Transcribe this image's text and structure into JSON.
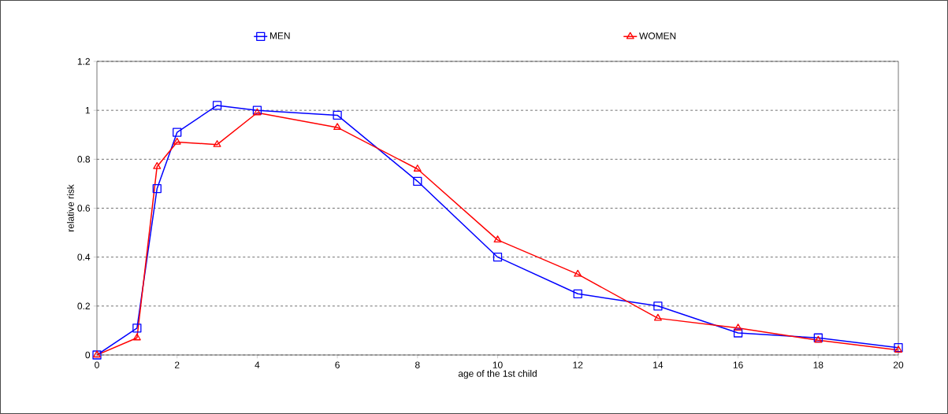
{
  "chart_data": {
    "type": "line",
    "xlabel": "age of the 1st child",
    "ylabel": "relative risk",
    "x": [
      0,
      1,
      1.5,
      2,
      3,
      4,
      6,
      8,
      10,
      12,
      14,
      16,
      18,
      20
    ],
    "series": [
      {
        "name": "MEN",
        "color": "#0000ff",
        "marker": "square",
        "values": [
          0,
          0.11,
          0.68,
          0.91,
          1.02,
          1.0,
          0.98,
          0.71,
          0.4,
          0.25,
          0.2,
          0.09,
          0.07,
          0.03
        ]
      },
      {
        "name": "WOMEN",
        "color": "#ff0000",
        "marker": "triangle",
        "values": [
          0,
          0.07,
          0.77,
          0.87,
          0.86,
          0.99,
          0.93,
          0.76,
          0.47,
          0.33,
          0.15,
          0.11,
          0.06,
          0.02
        ]
      }
    ],
    "xlim": [
      0,
      20
    ],
    "xticks": [
      0,
      2,
      4,
      6,
      8,
      10,
      12,
      14,
      16,
      18,
      20
    ],
    "ylim": [
      0,
      1.2
    ],
    "yticks": [
      0,
      0.2,
      0.4,
      0.6,
      0.8,
      1,
      1.2
    ],
    "grid": "y",
    "legend": "top",
    "line_style": "solid"
  }
}
